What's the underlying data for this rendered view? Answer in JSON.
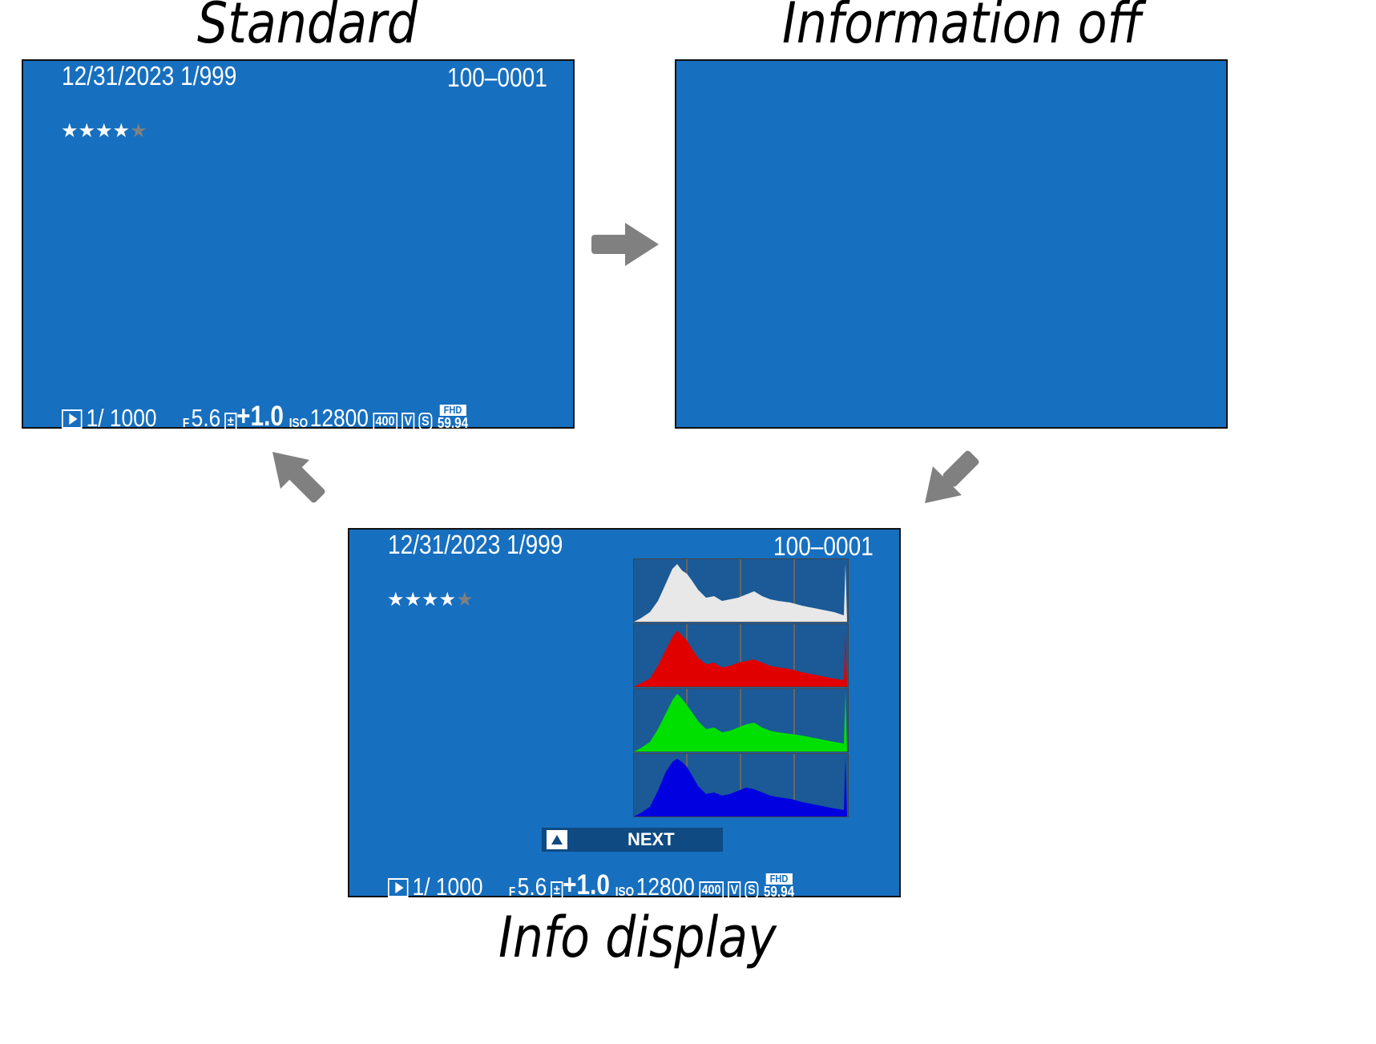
{
  "captions": {
    "standard": "Standard",
    "info_off": "Information off",
    "info_display": "Info display"
  },
  "screen": {
    "date_frame": "12/31/2023   1/999",
    "file_number": "100–0001",
    "stars_on": "★★★★",
    "stars_off": "★",
    "rating": 4,
    "rating_max": 5,
    "shutter": "1/ 1000",
    "aperture_prefix": "F",
    "aperture": "5.6",
    "exposure_comp": "+1.0",
    "iso_prefix": "ISO",
    "iso": "12800",
    "dr_label": "DR",
    "dr_value": "400",
    "film_sim": "V",
    "size": "S",
    "fhd_top": "FHD",
    "fhd_bottom": "59.94"
  },
  "next_button": {
    "label": "NEXT"
  },
  "colors": {
    "screen_bg": "#176fbf",
    "arrow": "#808080",
    "hist_white": "#e8e8e8",
    "hist_red": "#e00000",
    "hist_green": "#00e000",
    "hist_blue": "#0000e0"
  },
  "icons": [
    "play-icon",
    "exposure-compensation-icon",
    "dynamic-range-icon",
    "film-simulation-icon",
    "image-size-icon",
    "movie-mode-icon",
    "arrow-right-icon",
    "arrow-down-left-icon",
    "arrow-up-left-icon",
    "up-key-icon"
  ]
}
